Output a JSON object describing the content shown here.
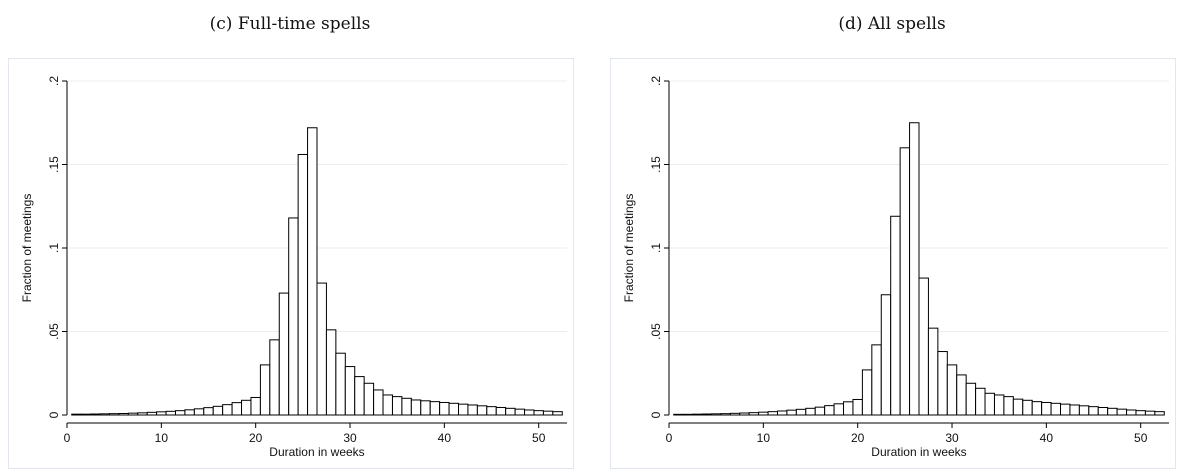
{
  "chart_data": [
    {
      "type": "bar",
      "panel_caption": "(c) Full-time spells",
      "xlabel": "Duration in weeks",
      "ylabel": "Fraction of meetings",
      "xlim": [
        0,
        53
      ],
      "ylim": [
        0,
        0.2
      ],
      "xticks": [
        "0",
        "10",
        "20",
        "30",
        "40",
        "50"
      ],
      "xtick_values": [
        0,
        10,
        20,
        30,
        40,
        50
      ],
      "yticks": [
        "0",
        ".05",
        ".1",
        ".15",
        ".2"
      ],
      "ytick_values": [
        0,
        0.05,
        0.1,
        0.15,
        0.2
      ],
      "grid": true,
      "bin_start": 1,
      "bin_width": 1,
      "values": [
        0.0005,
        0.0005,
        0.0006,
        0.0007,
        0.0008,
        0.0009,
        0.0011,
        0.0013,
        0.0016,
        0.0019,
        0.0022,
        0.0026,
        0.0031,
        0.0037,
        0.0044,
        0.0052,
        0.0062,
        0.0074,
        0.0088,
        0.0105,
        0.03,
        0.045,
        0.073,
        0.118,
        0.156,
        0.172,
        0.079,
        0.051,
        0.037,
        0.029,
        0.023,
        0.019,
        0.015,
        0.012,
        0.011,
        0.01,
        0.009,
        0.0085,
        0.008,
        0.0075,
        0.007,
        0.0065,
        0.006,
        0.0055,
        0.005,
        0.0045,
        0.004,
        0.0035,
        0.003,
        0.0026,
        0.0023,
        0.002
      ]
    },
    {
      "type": "bar",
      "panel_caption": "(d) All spells",
      "xlabel": "Duration in weeks",
      "ylabel": "Fraction of meetings",
      "xlim": [
        0,
        53
      ],
      "ylim": [
        0,
        0.2
      ],
      "xticks": [
        "0",
        "10",
        "20",
        "30",
        "40",
        "50"
      ],
      "xtick_values": [
        0,
        10,
        20,
        30,
        40,
        50
      ],
      "yticks": [
        "0",
        ".05",
        ".1",
        ".15",
        ".2"
      ],
      "ytick_values": [
        0,
        0.05,
        0.1,
        0.15,
        0.2
      ],
      "grid": true,
      "bin_start": 1,
      "bin_width": 1,
      "values": [
        0.0004,
        0.0004,
        0.0005,
        0.0006,
        0.0007,
        0.0008,
        0.001,
        0.0012,
        0.0014,
        0.0017,
        0.002,
        0.0024,
        0.0029,
        0.0034,
        0.004,
        0.0047,
        0.0056,
        0.0067,
        0.0079,
        0.0093,
        0.027,
        0.042,
        0.072,
        0.119,
        0.16,
        0.175,
        0.082,
        0.052,
        0.038,
        0.03,
        0.024,
        0.019,
        0.016,
        0.013,
        0.012,
        0.011,
        0.0095,
        0.0088,
        0.008,
        0.0075,
        0.007,
        0.0065,
        0.006,
        0.0055,
        0.005,
        0.0045,
        0.004,
        0.0035,
        0.003,
        0.0026,
        0.0023,
        0.002
      ]
    }
  ]
}
